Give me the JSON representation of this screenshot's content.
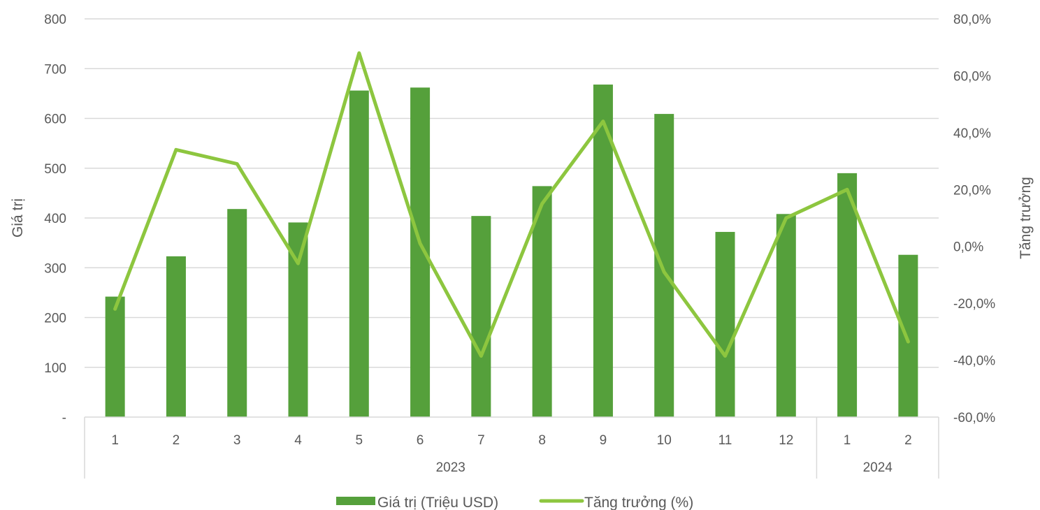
{
  "chart_data": {
    "type": "bar",
    "categories": [
      "1",
      "2",
      "3",
      "4",
      "5",
      "6",
      "7",
      "8",
      "9",
      "10",
      "11",
      "12",
      "1",
      "2"
    ],
    "groups": [
      {
        "label": "2023",
        "count": 12
      },
      {
        "label": "2024",
        "count": 2
      }
    ],
    "series": [
      {
        "name": "Giá trị (Triệu USD)",
        "type": "bar",
        "axis": "left",
        "color": "#55a03b",
        "values": [
          242,
          323,
          418,
          391,
          656,
          662,
          404,
          464,
          668,
          609,
          372,
          408,
          490,
          326
        ]
      },
      {
        "name": "Tăng trưởng (%)",
        "type": "line",
        "axis": "right",
        "color": "#8dc63f",
        "values": [
          -22.0,
          34.0,
          29.0,
          -6.0,
          68.0,
          1.0,
          -38.5,
          15.0,
          44.0,
          -9.0,
          -38.5,
          10.0,
          20.0,
          -33.5
        ]
      }
    ],
    "y_left": {
      "label": "Giá trị",
      "range": [
        0,
        800
      ],
      "ticks": [
        {
          "value": 0,
          "label": "-"
        },
        {
          "value": 100,
          "label": "100"
        },
        {
          "value": 200,
          "label": "200"
        },
        {
          "value": 300,
          "label": "300"
        },
        {
          "value": 400,
          "label": "400"
        },
        {
          "value": 500,
          "label": "500"
        },
        {
          "value": 600,
          "label": "600"
        },
        {
          "value": 700,
          "label": "700"
        },
        {
          "value": 800,
          "label": "800"
        }
      ]
    },
    "y_right": {
      "label": "Tăng trưởng",
      "range": [
        -60,
        80
      ],
      "ticks": [
        {
          "value": -60,
          "label": "-60,0%"
        },
        {
          "value": -40,
          "label": "-40,0%"
        },
        {
          "value": -20,
          "label": "-20,0%"
        },
        {
          "value": 0,
          "label": "0,0%"
        },
        {
          "value": 20,
          "label": "20,0%"
        },
        {
          "value": 40,
          "label": "40,0%"
        },
        {
          "value": 60,
          "label": "60,0%"
        },
        {
          "value": 80,
          "label": "80,0%"
        }
      ]
    },
    "grid": true,
    "legend_position": "bottom"
  }
}
